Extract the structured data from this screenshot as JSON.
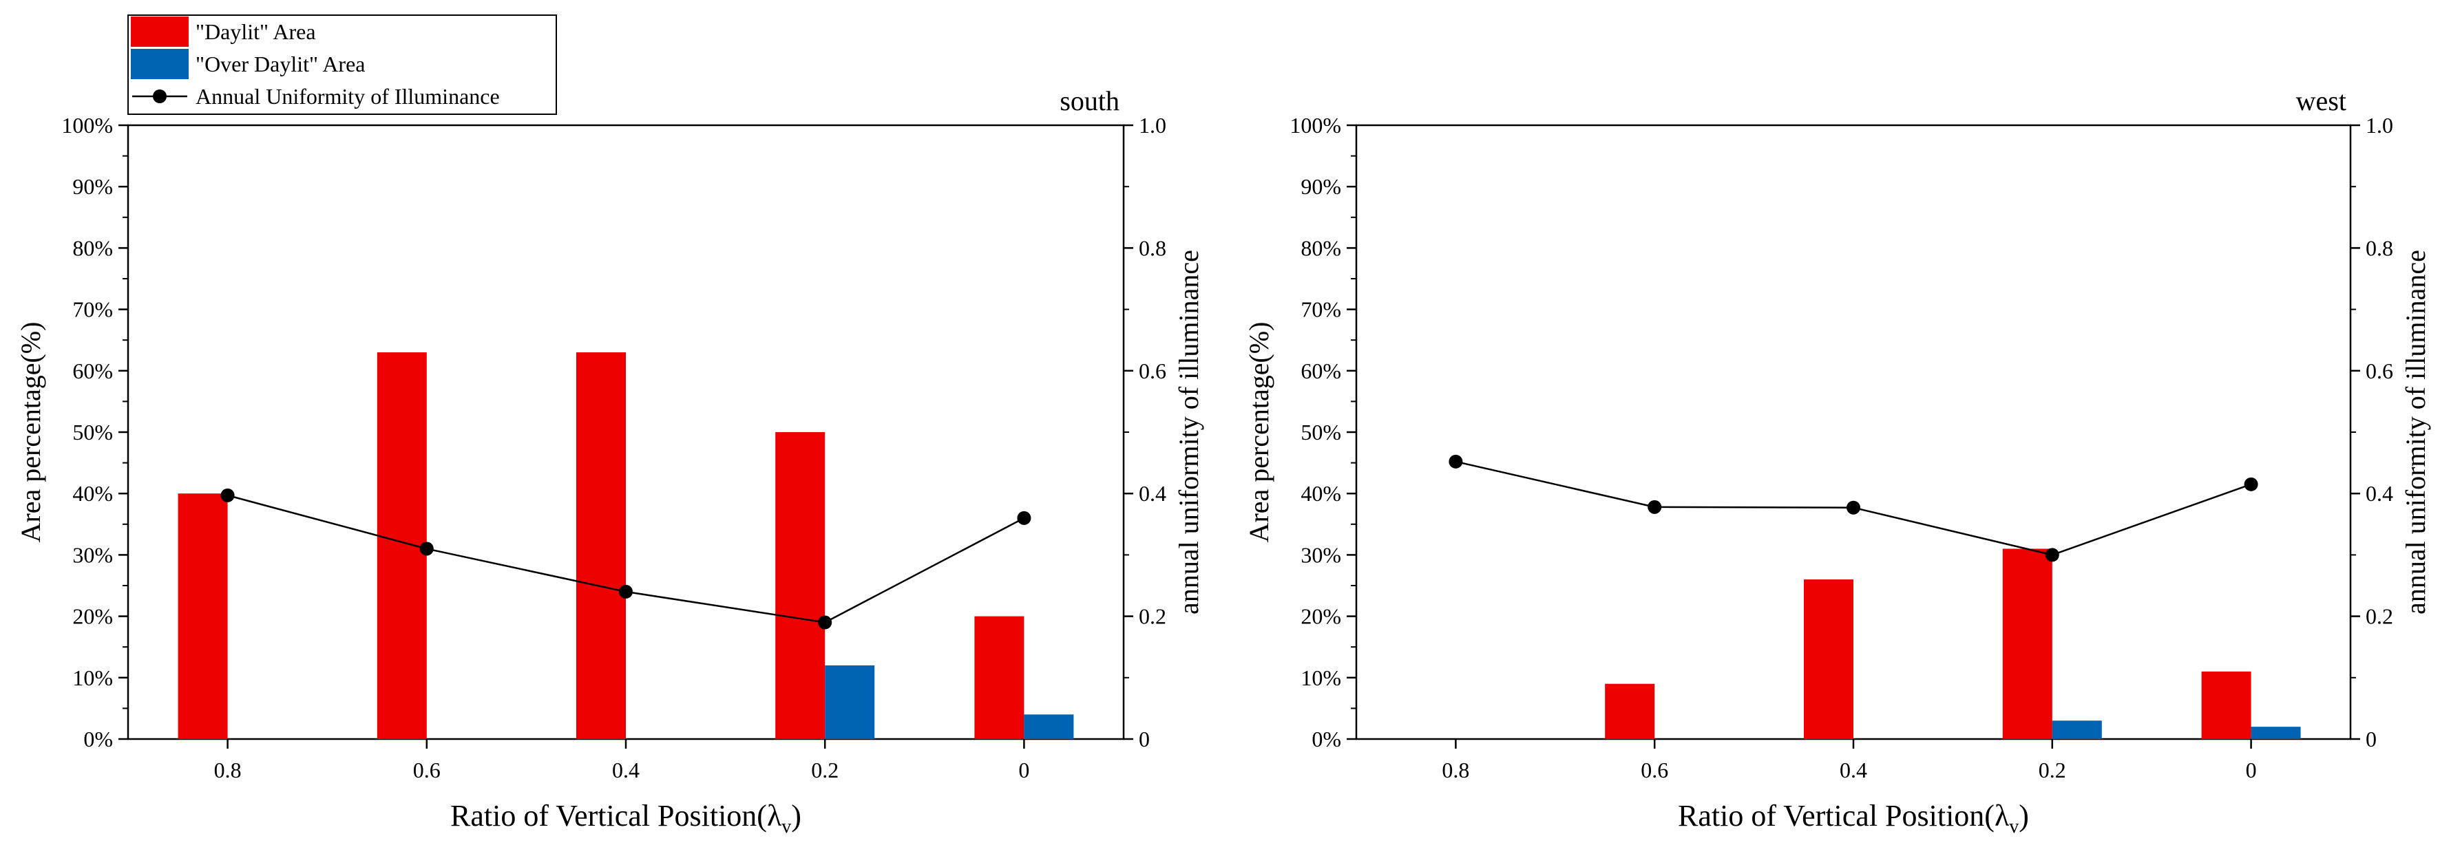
{
  "legend": {
    "items": [
      {
        "label": "\"Daylit\" Area",
        "kind": "bar",
        "color": "#ee0000"
      },
      {
        "label": "\"Over Daylit\" Area",
        "kind": "bar",
        "color": "#0063b4"
      },
      {
        "label": "Annual Uniformity of Illuminance",
        "kind": "line-marker",
        "color": "#000000"
      }
    ]
  },
  "chart_data": [
    {
      "type": "bar",
      "title": "south",
      "categories": [
        "0.8",
        "0.6",
        "0.4",
        "0.2",
        "0"
      ],
      "xlabel": "Ratio of Vertical Position(λ",
      "xlabel_sub": "v",
      "xlabel_close": ")",
      "ylabel": "Area percentage(%)",
      "ylim": [
        0,
        100
      ],
      "yticks": [
        "0%",
        "10%",
        "20%",
        "30%",
        "40%",
        "50%",
        "60%",
        "70%",
        "80%",
        "90%",
        "100%"
      ],
      "y2label": "annual uniformity of illuminance",
      "y2lim": [
        0,
        1.0
      ],
      "y2ticks": [
        "0",
        "0.2",
        "0.4",
        "0.6",
        "0.8",
        "1.0"
      ],
      "series": [
        {
          "name": "\"Daylit\" Area",
          "type": "bar",
          "axis": "left",
          "color": "#ee0000",
          "values": [
            40,
            63,
            63,
            50,
            20
          ]
        },
        {
          "name": "\"Over Daylit\" Area",
          "type": "bar",
          "axis": "left",
          "color": "#0063b4",
          "values": [
            0,
            0,
            0,
            12,
            4
          ]
        },
        {
          "name": "Annual Uniformity of Illuminance",
          "type": "line",
          "axis": "right",
          "color": "#000000",
          "values": [
            0.397,
            0.31,
            0.24,
            0.19,
            0.36
          ]
        }
      ]
    },
    {
      "type": "bar",
      "title": "west",
      "categories": [
        "0.8",
        "0.6",
        "0.4",
        "0.2",
        "0"
      ],
      "xlabel": "Ratio of Vertical Position(λ",
      "xlabel_sub": "v",
      "xlabel_close": ")",
      "ylabel": "Area percentage(%)",
      "ylim": [
        0,
        100
      ],
      "yticks": [
        "0%",
        "10%",
        "20%",
        "30%",
        "40%",
        "50%",
        "60%",
        "70%",
        "80%",
        "90%",
        "100%"
      ],
      "y2label": "annual uniformity of illuminance",
      "y2lim": [
        0,
        1.0
      ],
      "y2ticks": [
        "0",
        "0.2",
        "0.4",
        "0.6",
        "0.8",
        "1.0"
      ],
      "series": [
        {
          "name": "\"Daylit\" Area",
          "type": "bar",
          "axis": "left",
          "color": "#ee0000",
          "values": [
            0,
            9,
            26,
            31,
            11
          ]
        },
        {
          "name": "\"Over Daylit\" Area",
          "type": "bar",
          "axis": "left",
          "color": "#0063b4",
          "values": [
            0,
            0,
            0,
            3,
            2
          ]
        },
        {
          "name": "Annual Uniformity of Illuminance",
          "type": "line",
          "axis": "right",
          "color": "#000000",
          "values": [
            0.452,
            0.378,
            0.377,
            0.3,
            0.415
          ]
        }
      ]
    }
  ]
}
